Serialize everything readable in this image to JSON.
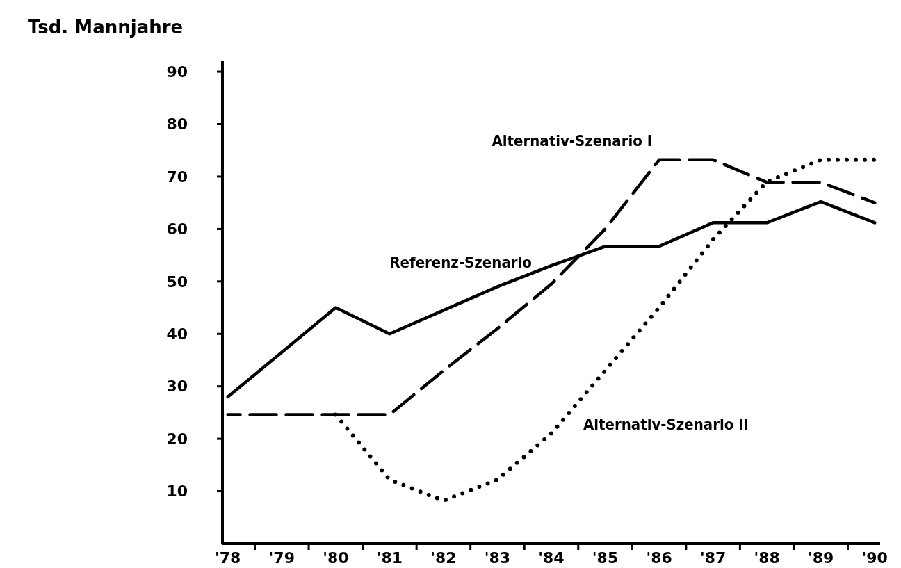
{
  "chart_data": {
    "type": "line",
    "ylabel": "Tsd. Mannjahre",
    "categories": [
      "'78",
      "'79",
      "'80",
      "'81",
      "'82",
      "'83",
      "'84",
      "'85",
      "'86",
      "'87",
      "'88",
      "'89",
      "'90"
    ],
    "ylim": [
      0,
      92
    ],
    "yticks": [
      10,
      20,
      30,
      40,
      50,
      60,
      70,
      80,
      90
    ],
    "grid": false,
    "marker": "none",
    "series": [
      {
        "name": "Referenz-Szenario",
        "color": "#000000",
        "line_style": "solid",
        "values": [
          28,
          36.5,
          45,
          40,
          44.5,
          49,
          53,
          56.7,
          56.7,
          61.2,
          61.2,
          65.2,
          61.2
        ]
      },
      {
        "name": "Alternativ-Szenario I",
        "color": "#000000",
        "line_style": "dashed",
        "values": [
          24.6,
          24.6,
          24.6,
          24.6,
          33,
          41,
          49.5,
          60,
          73.2,
          73.2,
          68.9,
          68.9,
          65
        ]
      },
      {
        "name": "Alternativ-Szenario II",
        "color": "#000000",
        "line_style": "dotted",
        "values": [
          null,
          null,
          24.6,
          12.2,
          8.2,
          12.2,
          21,
          33,
          45,
          58,
          69,
          73.2,
          73.2
        ]
      }
    ]
  }
}
